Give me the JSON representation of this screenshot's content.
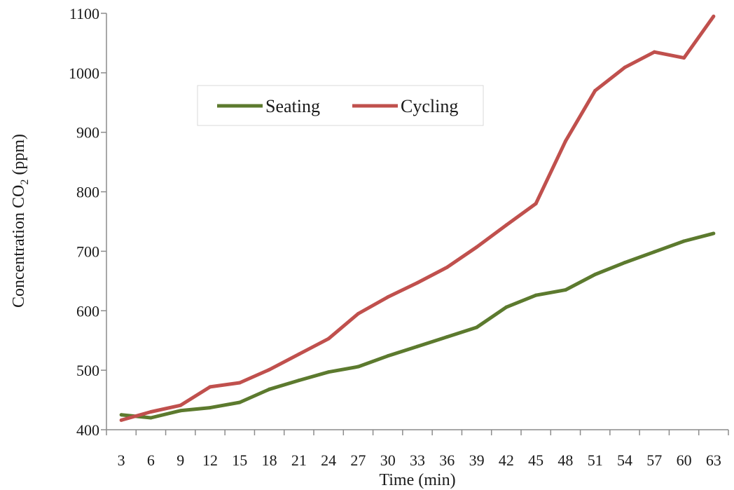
{
  "chart_data": {
    "type": "line",
    "title": "",
    "xlabel": "Time (min)",
    "ylabel": {
      "main": "Concentration CO",
      "sub": "2",
      "unit": " (ppm)"
    },
    "x": [
      3,
      6,
      9,
      12,
      15,
      18,
      21,
      24,
      27,
      30,
      33,
      36,
      39,
      42,
      45,
      48,
      51,
      54,
      57,
      60,
      63
    ],
    "ylim": [
      400,
      1100
    ],
    "yticks": [
      400,
      500,
      600,
      700,
      800,
      900,
      1000,
      1100
    ],
    "grid": false,
    "legend_position": "upper-left",
    "series": [
      {
        "name": "Seating",
        "color": "#5c7a2e",
        "values": [
          425,
          420,
          432,
          437,
          446,
          468,
          483,
          497,
          506,
          524,
          540,
          556,
          572,
          606,
          626,
          635,
          661,
          681,
          699,
          717,
          730
        ]
      },
      {
        "name": "Cycling",
        "color": "#c0504d",
        "values": [
          416,
          430,
          441,
          472,
          479,
          501,
          527,
          553,
          595,
          623,
          647,
          673,
          707,
          744,
          780,
          885,
          970,
          1009,
          1035,
          1025,
          1095
        ]
      }
    ]
  }
}
